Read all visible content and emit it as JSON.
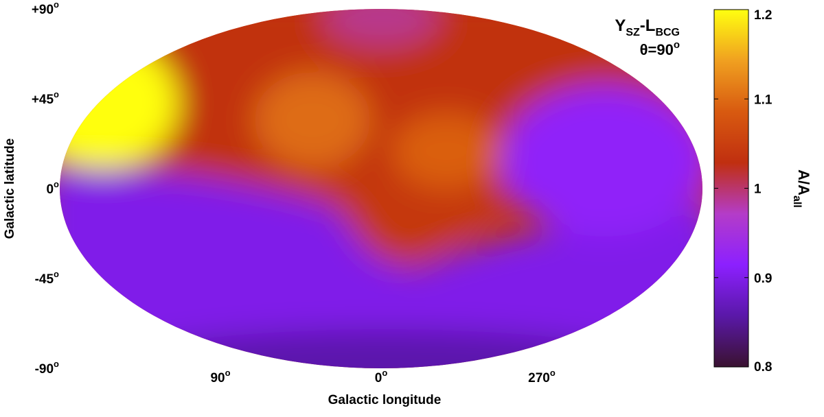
{
  "chart_data": {
    "type": "heatmap",
    "projection": "Aitoff/Hammer all-sky (Galactic), longitude 0° at centre",
    "title_main": "Y",
    "title_main_sub": "SZ",
    "title_dash": "-L",
    "title_dash_sub": "BCG",
    "subtitle": "θ=90",
    "subtitle_sup": "o",
    "xlabel": "Galactic longitude",
    "ylabel": "Galactic latitude",
    "colorbar_label": "A/A",
    "colorbar_label_sub": "all",
    "colorbar_range": [
      0.8,
      1.2
    ],
    "colorbar_ticks": [
      "1.2",
      "1.1",
      "1",
      "0.9",
      "0.8"
    ],
    "colormap": [
      "#3a1230",
      "#5a18a8",
      "#8c20ff",
      "#b43cc8",
      "#c02f10",
      "#d85a10",
      "#f0a020",
      "#ffff10"
    ],
    "lat_ticks": [
      {
        "value": 90,
        "label": "+90",
        "sup": "o"
      },
      {
        "value": 45,
        "label": "+45",
        "sup": "o"
      },
      {
        "value": 0,
        "label": "0",
        "sup": "o"
      },
      {
        "value": -45,
        "label": "-45",
        "sup": "o"
      },
      {
        "value": -90,
        "label": "-90",
        "sup": "o"
      }
    ],
    "lon_ticks": [
      {
        "value": 90,
        "label": "90",
        "sup": "o"
      },
      {
        "value": 0,
        "label": "0",
        "sup": "o"
      },
      {
        "value": 270,
        "label": "270",
        "sup": "o"
      }
    ],
    "regions": [
      {
        "name": "north-red-band",
        "value": 1.03
      },
      {
        "name": "north-pole-patch",
        "value": 0.99
      },
      {
        "name": "yellow-hotspot-l120-b45",
        "value": 1.2
      },
      {
        "name": "orange-ridge-l20-b40",
        "value": 1.1
      },
      {
        "name": "orange-ridge-l330-b10",
        "value": 1.09
      },
      {
        "name": "east-violet-region-l260-b15",
        "value": 0.92
      },
      {
        "name": "southern-violet",
        "value": 0.9
      },
      {
        "name": "south-pole-dark",
        "value": 0.86
      },
      {
        "name": "southern-red-tongue-l0-b-30",
        "value": 1.04
      }
    ]
  }
}
